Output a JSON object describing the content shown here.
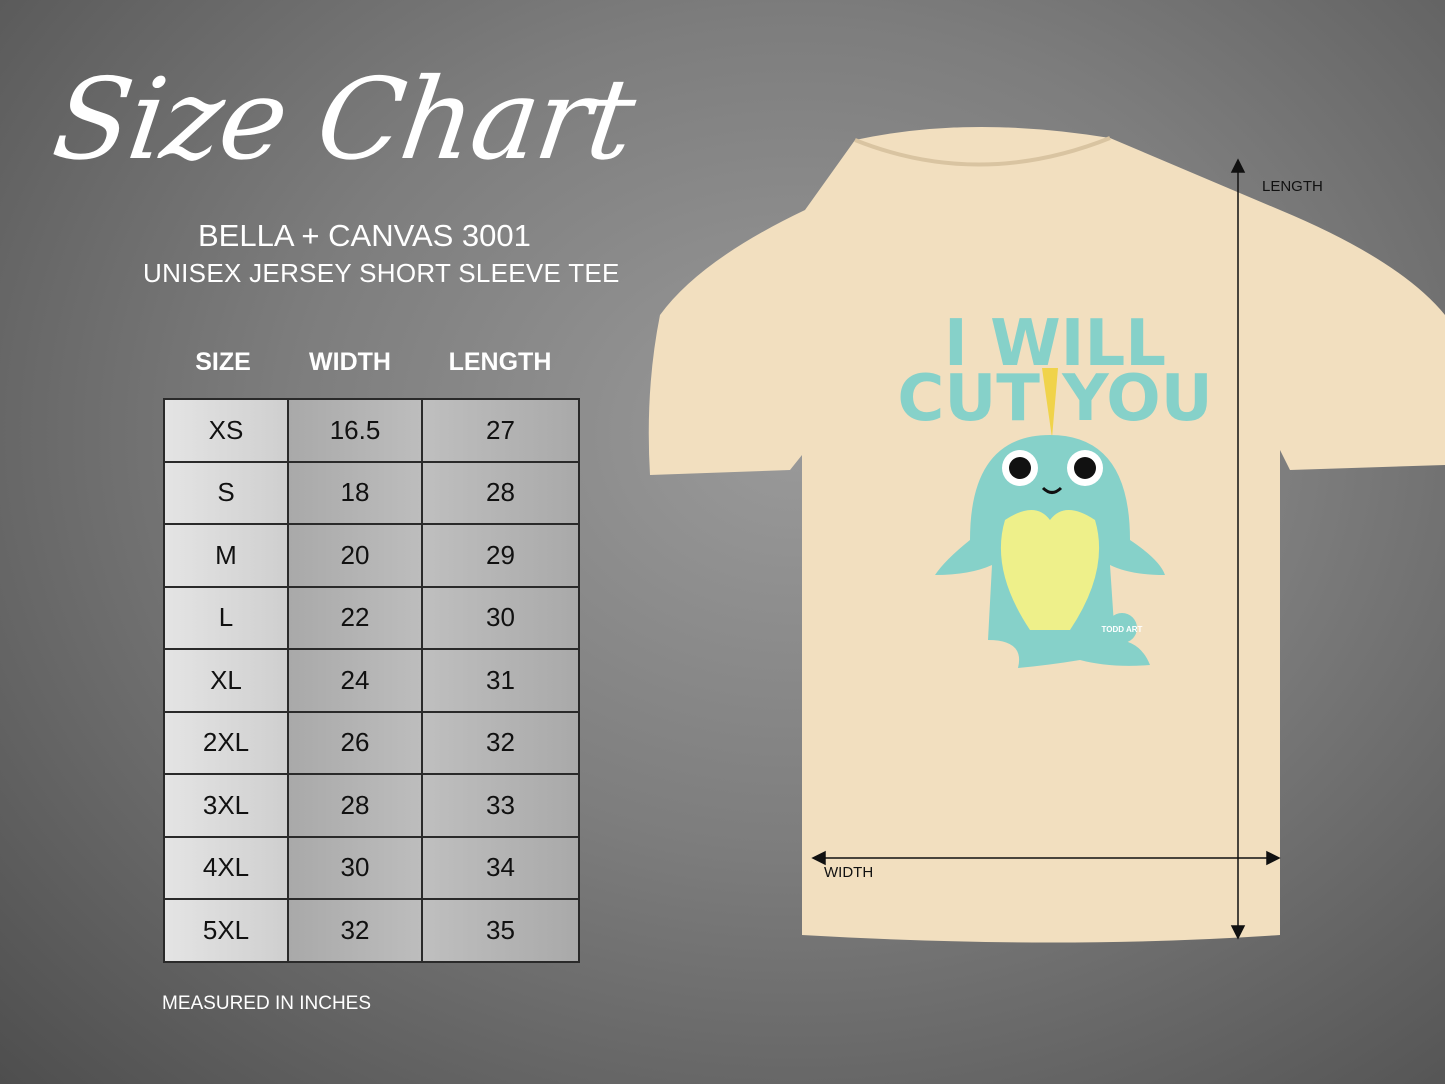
{
  "title": "Size Chart",
  "brand": "BELLA + CANVAS 3001",
  "subtitle": "UNISEX JERSEY SHORT SLEEVE TEE",
  "table": {
    "headers": [
      "SIZE",
      "WIDTH",
      "LENGTH"
    ],
    "rows": [
      [
        "XS",
        "16.5",
        "27"
      ],
      [
        "S",
        "18",
        "28"
      ],
      [
        "M",
        "20",
        "29"
      ],
      [
        "L",
        "22",
        "30"
      ],
      [
        "XL",
        "24",
        "31"
      ],
      [
        "2XL",
        "26",
        "32"
      ],
      [
        "3XL",
        "28",
        "33"
      ],
      [
        "4XL",
        "30",
        "34"
      ],
      [
        "5XL",
        "32",
        "35"
      ]
    ]
  },
  "note": "MEASURED IN INCHES",
  "shirt": {
    "color": "#f2dfbf",
    "graphic_line1": "I WILL",
    "graphic_line2": "CUT YOU",
    "graphic_color": "#86d1c9",
    "logo": "TODD ART",
    "length_label": "LENGTH",
    "width_label": "WIDTH"
  }
}
